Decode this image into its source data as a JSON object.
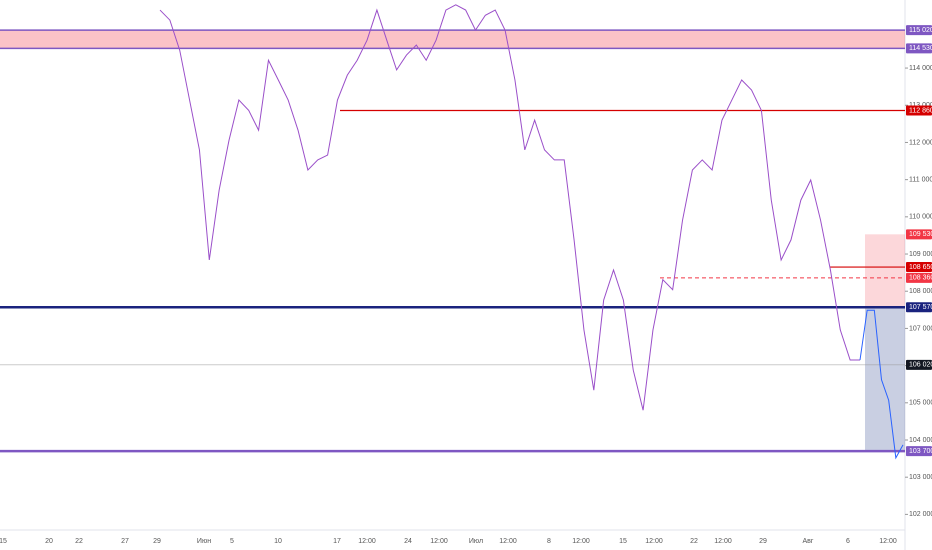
{
  "chart_data": {
    "type": "line",
    "x_axis_labels": [
      "15",
      "20",
      "22",
      "27",
      "29",
      "Июн",
      "5",
      "10",
      "17",
      "12:00",
      "24",
      "12:00",
      "Июл",
      "12:00",
      "8",
      "12:00",
      "15",
      "12:00",
      "22",
      "12:00",
      "29",
      "Авг",
      "6",
      "12:00"
    ],
    "ylim": [
      101580,
      115830
    ],
    "yticks": [
      {
        "value": 102000,
        "label": "102 000"
      },
      {
        "value": 103000,
        "label": "103 000"
      },
      {
        "value": 104000,
        "label": "104 000"
      },
      {
        "value": 105000,
        "label": "105 000"
      },
      {
        "value": 106000,
        "label": "106 000"
      },
      {
        "value": 107000,
        "label": "107 000"
      },
      {
        "value": 108000,
        "label": "108 000"
      },
      {
        "value": 109000,
        "label": "109 000"
      },
      {
        "value": 110000,
        "label": "110 000"
      },
      {
        "value": 111000,
        "label": "111 000"
      },
      {
        "value": 112000,
        "label": "112 000"
      },
      {
        "value": 113000,
        "label": "113 000"
      },
      {
        "value": 114000,
        "label": "114 000"
      }
    ],
    "series": [
      {
        "color": "#9a4fc9",
        "values": [
          115560,
          115290,
          114480,
          113140,
          111800,
          108840,
          110720,
          112060,
          113140,
          112860,
          112330,
          114210,
          113680,
          113140,
          112330,
          111260,
          111530,
          111660,
          113140,
          113810,
          114210,
          114750,
          115560,
          114750,
          113950,
          114350,
          114620,
          114210,
          114750,
          115560,
          115700,
          115560,
          115020,
          115420,
          115560,
          115020,
          113680,
          111800,
          112600,
          111800,
          111530,
          111530,
          109380,
          106960,
          105340,
          107760,
          108570,
          107760,
          105880,
          104800,
          106960,
          108310,
          108040,
          109910,
          111260,
          111530,
          111260,
          112600,
          113140,
          113680,
          113410,
          112860,
          110450,
          108840,
          109380,
          110450,
          110990,
          109910,
          108570,
          106960,
          106150,
          106150
        ]
      },
      {
        "color": "#2962ff",
        "values": [
          106150,
          107490,
          107490,
          105620,
          105070,
          103520,
          103870
        ]
      }
    ],
    "levels": [
      {
        "value": 115020,
        "label": "115 020",
        "color": "#7e57c2"
      },
      {
        "value": 114530,
        "label": "114 530",
        "color": "#7e57c2"
      },
      {
        "value": 112860,
        "label": "112 860",
        "color": "#d50000"
      },
      {
        "value": 109530,
        "label": "109 530",
        "color": "#f23645"
      },
      {
        "value": 108650,
        "label": "108 650",
        "color": "#d50000"
      },
      {
        "value": 108360,
        "label": "108 360",
        "color": "#f23645"
      },
      {
        "value": 107570,
        "label": "107 570",
        "color": "#1a237e"
      },
      {
        "value": 106020,
        "label": "106 020",
        "color": "#131722"
      },
      {
        "value": 103700,
        "label": "103 700",
        "color": "#7e57c2"
      }
    ]
  }
}
